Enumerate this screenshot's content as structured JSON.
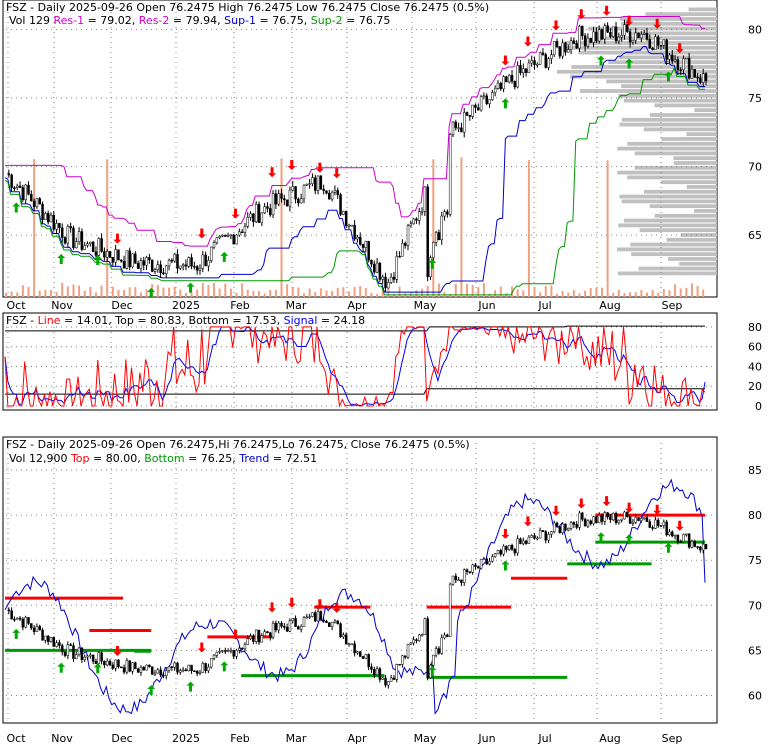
{
  "colors": {
    "background": "#ffffff",
    "frame": "#000000",
    "grid": "#808080",
    "candle_up": "#ffffff",
    "candle_down": "#000000",
    "res_line": "#cc00cc",
    "sup_line": "#0000cc",
    "sup2_line": "#009900",
    "volume_bar": "#f0a080",
    "volume_profile": "#c0c0c0",
    "sell_arrow": "#ff0000",
    "buy_arrow": "#00aa00",
    "stoch_line": "#ff0000",
    "stoch_signal": "#0000ff",
    "stoch_bounds": "#000000",
    "trend_line": "#0000cc",
    "top_level": "#ff0000",
    "bottom_level": "#009900"
  },
  "panels": {
    "top": {
      "header_line1": [
        {
          "text": "FSZ - Daily 2025-09-26 Open 76.2475  High 76.2475  Low 76.2475  Close 76.2475 (0.5%)",
          "color": "#000000"
        }
      ],
      "header_line2": [
        {
          "text": "Vol 129 ",
          "color": "#000000"
        },
        {
          "text": "Res-1",
          "color": "#cc00cc"
        },
        {
          "text": " = 79.02, ",
          "color": "#000000"
        },
        {
          "text": "Res-2",
          "color": "#cc00cc"
        },
        {
          "text": " = 79.94, ",
          "color": "#000000"
        },
        {
          "text": "Sup-1",
          "color": "#0000cc"
        },
        {
          "text": " = 76.75, ",
          "color": "#000000"
        },
        {
          "text": "Sup-2",
          "color": "#009900"
        },
        {
          "text": " = 76.75",
          "color": "#000000"
        }
      ],
      "y_ticks": [
        65,
        70,
        75,
        80
      ]
    },
    "middle": {
      "header_line1": [
        {
          "text": "FSZ - ",
          "color": "#000000"
        },
        {
          "text": "Line",
          "color": "#ff0000"
        },
        {
          "text": " = 14.01, ",
          "color": "#000000"
        },
        {
          "text": "Top",
          "color": "#000000"
        },
        {
          "text": " = 80.83, ",
          "color": "#000000"
        },
        {
          "text": "Bottom",
          "color": "#000000"
        },
        {
          "text": " = 17.53, ",
          "color": "#000000"
        },
        {
          "text": "Signal",
          "color": "#0000ff"
        },
        {
          "text": " = 24.18",
          "color": "#000000"
        }
      ],
      "y_ticks": [
        0,
        20,
        40,
        60,
        80
      ]
    },
    "bottom": {
      "header_line1": [
        {
          "text": "FSZ - Daily 2025-09-26 Open 76.2475,Hi 76.2475,Lo 76.2475, Close 76.2475 (0.5%)",
          "color": "#000000"
        }
      ],
      "header_line2": [
        {
          "text": "Vol 12,900 ",
          "color": "#000000"
        },
        {
          "text": "Top",
          "color": "#ff0000"
        },
        {
          "text": " = 80.00, ",
          "color": "#000000"
        },
        {
          "text": "Bottom",
          "color": "#009900"
        },
        {
          "text": " = 76.25, ",
          "color": "#000000"
        },
        {
          "text": "Trend",
          "color": "#0000cc"
        },
        {
          "text": " = 72.51",
          "color": "#000000"
        }
      ],
      "y_ticks": [
        60,
        65,
        70,
        75,
        80,
        85
      ]
    }
  },
  "chart_data": [
    {
      "type": "candlestick",
      "ticker": "FSZ",
      "x_labels": [
        "Oct",
        "Nov",
        "Dec",
        "2025",
        "Feb",
        "Mar",
        "Apr",
        "May",
        "Jun",
        "Jul",
        "Aug",
        "Sep"
      ],
      "ylim": [
        61,
        82
      ],
      "y_ticks": [
        65,
        70,
        75,
        80
      ],
      "month_closes": [
        69.5,
        64.8,
        63.0,
        62.8,
        66.8,
        69.0,
        61.5,
        72.5,
        76.5,
        79.5,
        79.8,
        76.25
      ],
      "series": [
        {
          "name": "Res-1",
          "last": 79.02
        },
        {
          "name": "Res-2",
          "last": 79.94
        },
        {
          "name": "Sup-1",
          "last": 76.75
        },
        {
          "name": "Sup-2",
          "last": 76.75
        }
      ]
    },
    {
      "type": "line",
      "ylim": [
        0,
        85
      ],
      "y_ticks": [
        0,
        20,
        40,
        60,
        80
      ],
      "series": [
        {
          "name": "Line",
          "last": 14.01
        },
        {
          "name": "Signal",
          "last": 24.18
        },
        {
          "name": "Top",
          "last": 80.83
        },
        {
          "name": "Bottom",
          "last": 17.53
        }
      ]
    },
    {
      "type": "candlestick",
      "ylim": [
        57.5,
        88
      ],
      "y_ticks": [
        60,
        65,
        70,
        75,
        80,
        85
      ],
      "x_labels": [
        "Oct",
        "Nov",
        "Dec",
        "2025",
        "Feb",
        "Mar",
        "Apr",
        "May",
        "Jun",
        "Jul",
        "Aug",
        "Sep"
      ],
      "series": [
        {
          "name": "Top",
          "last": 80.0
        },
        {
          "name": "Bottom",
          "last": 76.25
        },
        {
          "name": "Trend",
          "last": 72.51
        }
      ]
    }
  ]
}
